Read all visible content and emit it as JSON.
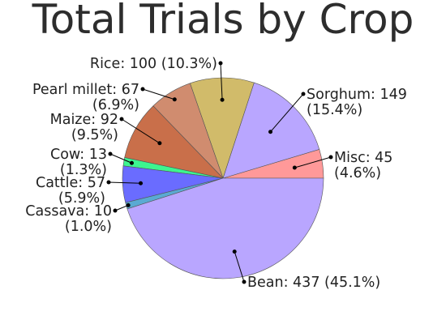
{
  "chart_data": {
    "type": "pie",
    "title": "Total Trials by Crop",
    "slices": [
      {
        "label": "Misc",
        "value": 45,
        "percent": "4.6%",
        "color": "#ff9999"
      },
      {
        "label": "Sorghum",
        "value": 149,
        "percent": "15.4%",
        "color": "#b9a6ff"
      },
      {
        "label": "Rice",
        "value": 100,
        "percent": "10.3%",
        "color": "#d1bb6a"
      },
      {
        "label": "Pearl millet",
        "value": 67,
        "percent": "6.9%",
        "color": "#d08c6f"
      },
      {
        "label": "Maize",
        "value": 92,
        "percent": "9.5%",
        "color": "#c96f4a"
      },
      {
        "label": "Cow",
        "value": 13,
        "percent": "1.3%",
        "color": "#3df58f"
      },
      {
        "label": "Cattle",
        "value": 57,
        "percent": "5.9%",
        "color": "#6a6cff"
      },
      {
        "label": "Cassava",
        "value": 10,
        "percent": "1.0%",
        "color": "#5aaad3"
      },
      {
        "label": "Bean",
        "value": 437,
        "percent": "45.1%",
        "color": "#b9a6ff"
      }
    ],
    "legend": "none"
  }
}
